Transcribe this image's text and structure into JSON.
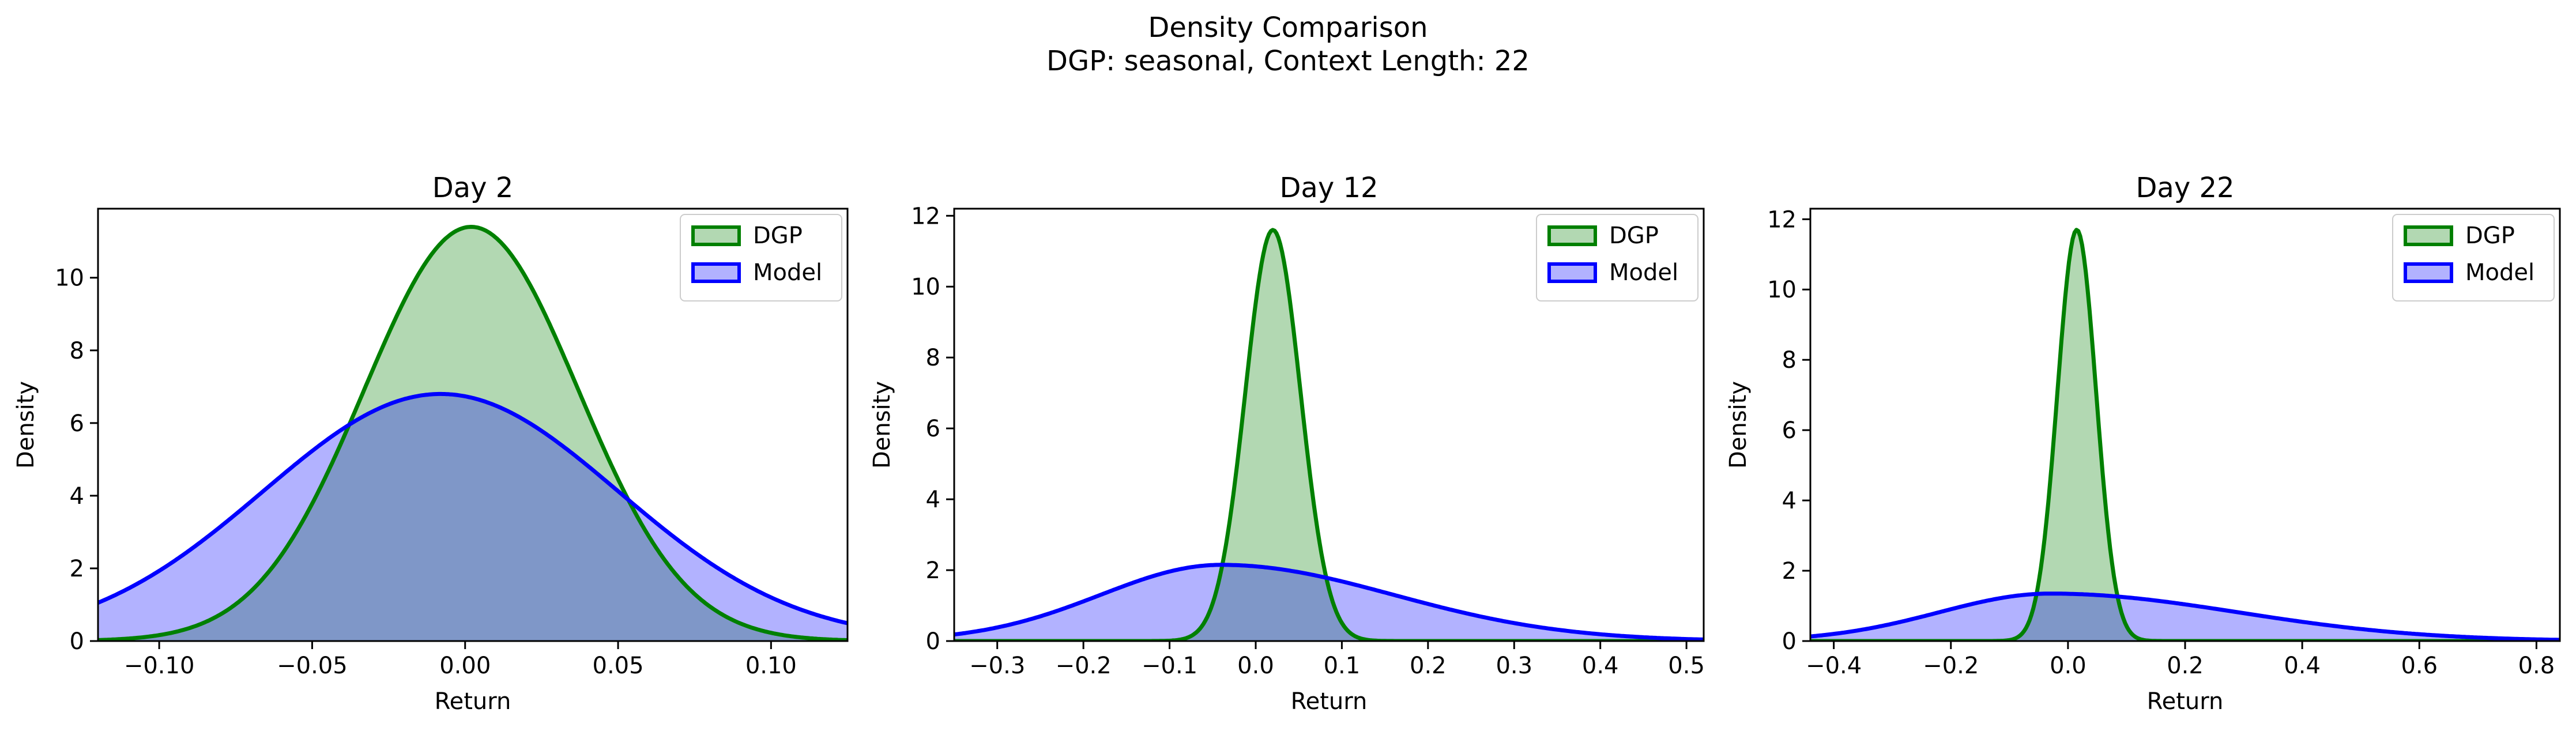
{
  "figure": {
    "title_line1": "Density Comparison",
    "title_line2": "DGP: seasonal, Context Length: 22"
  },
  "colors": {
    "dgp_line": "#008000",
    "dgp_fill": "#b2d8b2",
    "model_line": "#0000ff",
    "model_fill": "#b2b2ff",
    "overlap_fill": "#7f97c8"
  },
  "chart_data": [
    {
      "type": "area",
      "title": "Day 2",
      "xlabel": "Return",
      "ylabel": "Density",
      "xlim": [
        -0.12,
        0.125
      ],
      "ylim": [
        0,
        11.9
      ],
      "xticks": [
        -0.1,
        -0.05,
        0.0,
        0.05,
        0.1
      ],
      "xtick_labels": [
        "−0.10",
        "−0.05",
        "0.00",
        "0.05",
        "0.10"
      ],
      "yticks": [
        0,
        2,
        4,
        6,
        8,
        10
      ],
      "ytick_labels": [
        "0",
        "2",
        "4",
        "6",
        "8",
        "10"
      ],
      "legend": "top-right",
      "series": [
        {
          "name": "DGP",
          "distribution": "normal",
          "mean": 0.002,
          "std": 0.035,
          "peak": 11.4
        },
        {
          "name": "Model",
          "distribution": "normal",
          "mean": -0.008,
          "std": 0.058,
          "peak": 6.8
        }
      ]
    },
    {
      "type": "area",
      "title": "Day 12",
      "xlabel": "Return",
      "ylabel": "Density",
      "xlim": [
        -0.35,
        0.52
      ],
      "ylim": [
        0,
        12.2
      ],
      "xticks": [
        -0.3,
        -0.2,
        -0.1,
        0.0,
        0.1,
        0.2,
        0.3,
        0.4,
        0.5
      ],
      "xtick_labels": [
        "−0.3",
        "−0.2",
        "−0.1",
        "0.0",
        "0.1",
        "0.2",
        "0.3",
        "0.4",
        "0.5"
      ],
      "yticks": [
        0,
        2,
        4,
        6,
        8,
        10,
        12
      ],
      "ytick_labels": [
        "0",
        "2",
        "4",
        "6",
        "8",
        "10",
        "12"
      ],
      "legend": "top-right",
      "series": [
        {
          "name": "DGP",
          "distribution": "normal",
          "mean": 0.02,
          "std": 0.032,
          "peak": 11.6
        },
        {
          "name": "Model",
          "distribution": "skew-normal",
          "mode": -0.04,
          "std_left": 0.14,
          "std_right": 0.2,
          "peak": 2.15
        }
      ]
    },
    {
      "type": "area",
      "title": "Day 22",
      "xlabel": "Return",
      "ylabel": "Density",
      "xlim": [
        -0.44,
        0.84
      ],
      "ylim": [
        0,
        12.3
      ],
      "xticks": [
        -0.4,
        -0.2,
        0.0,
        0.2,
        0.4,
        0.6,
        0.8
      ],
      "xtick_labels": [
        "−0.4",
        "−0.2",
        "0.0",
        "0.2",
        "0.4",
        "0.6",
        "0.8"
      ],
      "yticks": [
        0,
        2,
        4,
        6,
        8,
        10,
        12
      ],
      "ytick_labels": [
        "0",
        "2",
        "4",
        "6",
        "8",
        "10",
        "12"
      ],
      "legend": "top-right",
      "series": [
        {
          "name": "DGP",
          "distribution": "normal",
          "mean": 0.015,
          "std": 0.033,
          "peak": 11.7
        },
        {
          "name": "Model",
          "distribution": "skew-normal",
          "mode": -0.03,
          "std_left": 0.19,
          "std_right": 0.32,
          "peak": 1.35
        }
      ]
    }
  ]
}
